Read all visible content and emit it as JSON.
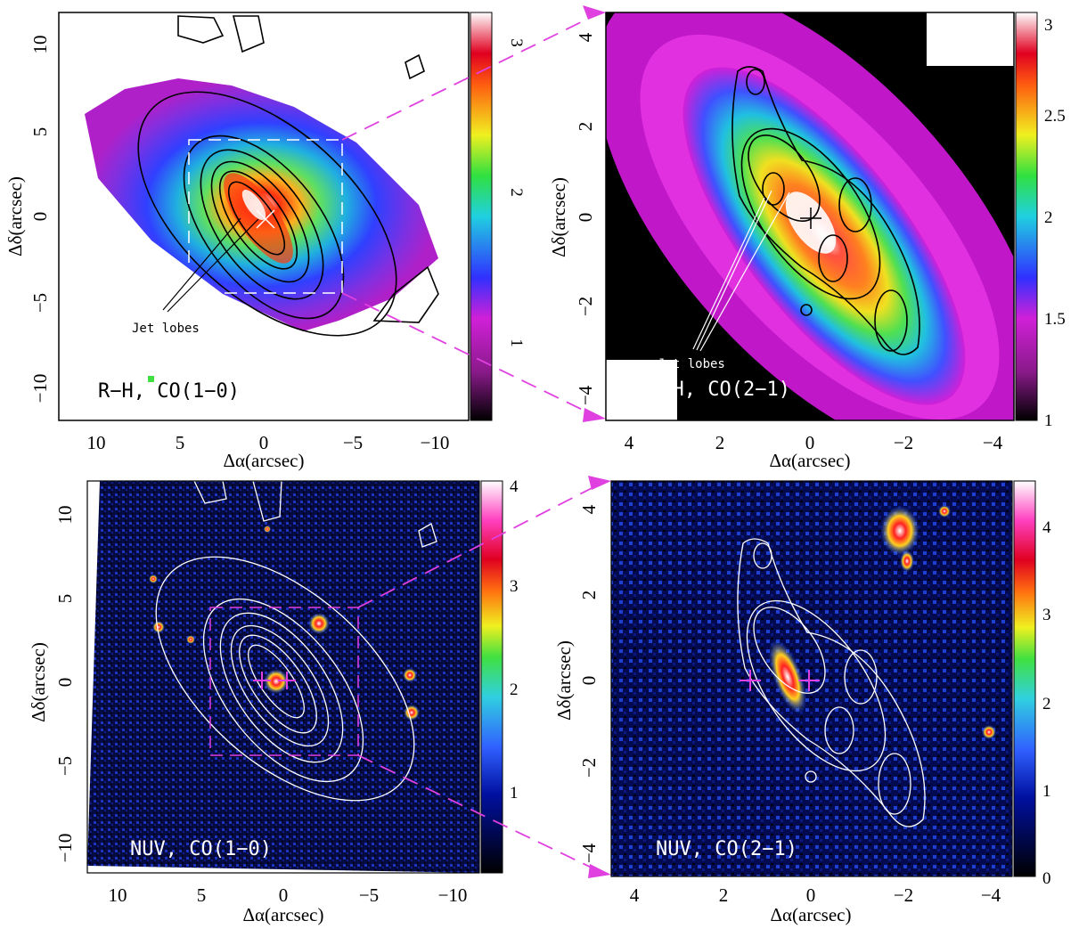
{
  "common": {
    "xlabel": "Δα(arcsec)",
    "ylabel": "Δδ(arcsec)",
    "jet_label": "Jet lobes",
    "accent_color": "#e040e0"
  },
  "panels": {
    "tl": {
      "label": "R−H, CO(1−0)",
      "xticks": [
        "10",
        "5",
        "0",
        "−5",
        "−10"
      ],
      "yticks": [
        "10",
        "5",
        "0",
        "−5",
        "−10"
      ],
      "colorbar_ticks": [
        "3",
        "2",
        "1"
      ]
    },
    "tr": {
      "label": "R−H, CO(2−1)",
      "xticks": [
        "4",
        "2",
        "0",
        "−2",
        "−4"
      ],
      "yticks": [
        "4",
        "2",
        "0",
        "−2",
        "−4"
      ],
      "colorbar_ticks": [
        "3",
        "2.5",
        "2",
        "1.5",
        "1"
      ]
    },
    "bl": {
      "label": "NUV, CO(1−0)",
      "xticks": [
        "10",
        "5",
        "0",
        "−5",
        "−10"
      ],
      "yticks": [
        "10",
        "5",
        "0",
        "−5",
        "−10"
      ],
      "colorbar_ticks": [
        "4",
        "3",
        "2",
        "1"
      ]
    },
    "br": {
      "label": "NUV, CO(2−1)",
      "xticks": [
        "4",
        "2",
        "0",
        "−2",
        "−4"
      ],
      "yticks": [
        "4",
        "2",
        "0",
        "−2",
        "−4"
      ],
      "colorbar_ticks": [
        "4",
        "3",
        "2",
        "1",
        "0"
      ]
    }
  }
}
